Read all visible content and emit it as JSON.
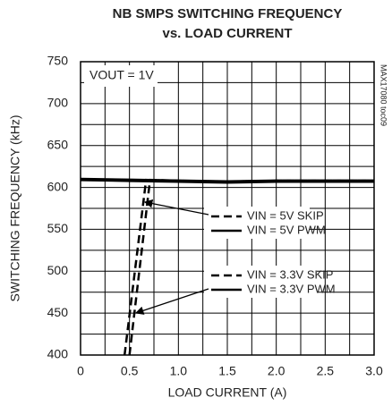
{
  "chart_data": {
    "type": "line",
    "title": "NB SMPS SWITCHING FREQUENCY",
    "subtitle": "vs. LOAD CURRENT",
    "x_label": "LOAD CURRENT (A)",
    "y_label": "SWITCHING FREQUENCY (kHz)",
    "annotation": "VOUT = 1V",
    "side_note": "MAX17080 toc09",
    "xlim": [
      0,
      3
    ],
    "ylim": [
      400,
      750
    ],
    "xticks": [
      0,
      0.5,
      {
        "value": 1,
        "label": "1.0"
      },
      1.5,
      {
        "value": 2,
        "label": "2.0"
      },
      2.5,
      {
        "value": 3,
        "label": "3.0"
      }
    ],
    "yticks": [
      400,
      450,
      500,
      550,
      600,
      650,
      700,
      750
    ],
    "grid": true,
    "series": [
      {
        "name": "VIN = 5V SKIP",
        "color": "#000000",
        "dashed": true,
        "x": [
          0.5,
          0.71,
          1.0,
          1.5,
          2.0,
          2.5,
          3.0
        ],
        "values": [
          400,
          609,
          608,
          607,
          608,
          608,
          608
        ]
      },
      {
        "name": "VIN = 5V PWM",
        "color": "#000000",
        "dashed": false,
        "x": [
          0,
          0.5,
          1.0,
          1.5,
          2.0,
          2.5,
          3.0
        ],
        "values": [
          610,
          609,
          608,
          607,
          608,
          608,
          608
        ]
      },
      {
        "name": "VIN = 3.3V SKIP",
        "color": "#000000",
        "dashed": true,
        "x": [
          0.45,
          0.67,
          1.0,
          1.5,
          2.0,
          2.5,
          3.0
        ],
        "values": [
          400,
          609,
          608,
          607,
          608,
          608,
          608
        ]
      },
      {
        "name": "VIN = 3.3V PWM",
        "color": "#000000",
        "dashed": false,
        "x": [
          0,
          0.5,
          1.0,
          1.5,
          2.0,
          2.5,
          3.0
        ],
        "values": [
          609,
          608,
          607,
          606,
          607,
          607,
          607
        ]
      }
    ]
  }
}
